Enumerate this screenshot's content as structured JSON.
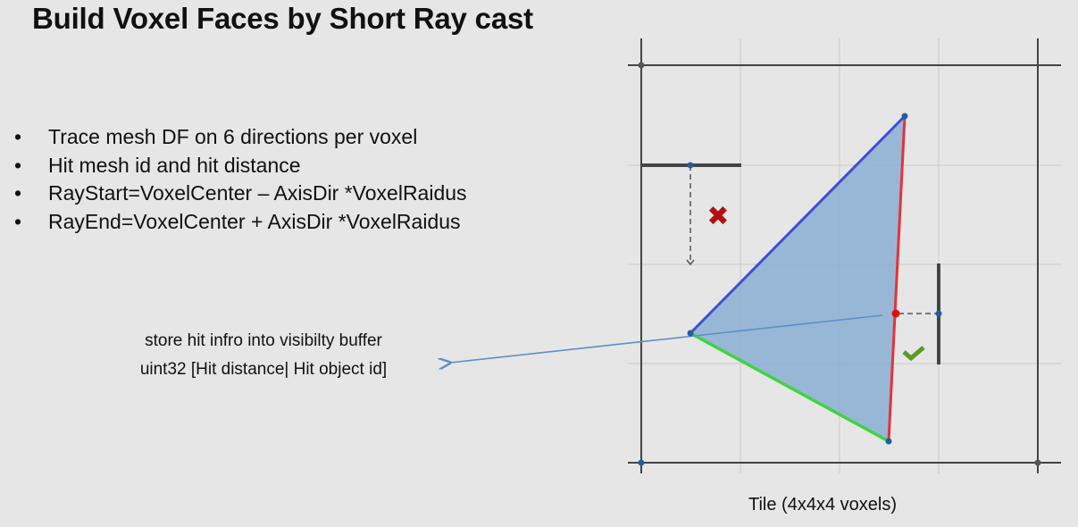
{
  "slide": {
    "title": "Build Voxel Faces by Short Ray cast",
    "bullets": [
      "Trace mesh DF on 6 directions per voxel",
      "Hit mesh id and hit distance",
      "RayStart=VoxelCenter – AxisDir *VoxelRaidus",
      "RayEnd=VoxelCenter + AxisDir *VoxelRaidus"
    ],
    "note": {
      "line1": "store hit infro into visibilty buffer",
      "line2": "uint32  [Hit distance| Hit object id]"
    }
  },
  "diagram": {
    "caption": "Tile (4x4x4 voxels)",
    "grid_cells": 4,
    "colors": {
      "triangle_fill": "#8aaed4",
      "edge_blue": "#3b4fd6",
      "edge_red": "#e5323a",
      "edge_green": "#3fd43f",
      "miss_mark": "#b01010",
      "hit_mark": "#5a9a2a",
      "pointer_line": "#5b8fc9"
    },
    "icons": {
      "miss": "cross-icon",
      "hit": "checkmark-icon"
    }
  }
}
